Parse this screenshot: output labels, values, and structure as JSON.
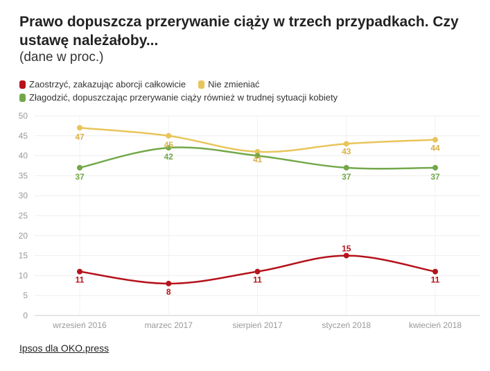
{
  "title": "Prawo dopuszcza przerywanie ciąży w trzech przypadkach. Czy ustawę należałoby...",
  "subtitle": "(dane w proc.)",
  "source": "Ipsos dla OKO.press",
  "chart_data": {
    "type": "line",
    "title": "Prawo dopuszcza przerywanie ciąży w trzech przypadkach. Czy ustawę należałoby...",
    "subtitle": "(dane w proc.)",
    "categories": [
      "wrzesień 2016",
      "marzec 2017",
      "sierpień 2017",
      "styczeń 2018",
      "kwiecień 2018"
    ],
    "ylim": [
      0,
      50
    ],
    "yticks": [
      0,
      5,
      10,
      15,
      20,
      25,
      30,
      35,
      40,
      45,
      50
    ],
    "grid": true,
    "legend_position": "top-left",
    "series": [
      {
        "name": "Zaostrzyć, zakazując aborcji całkowicie",
        "color": "#b5121b",
        "values": [
          11,
          8,
          11,
          15,
          11
        ]
      },
      {
        "name": "Nie zmieniać",
        "color": "#e8c55a",
        "values": [
          47,
          45,
          41,
          43,
          44
        ]
      },
      {
        "name": "Złagodzić, dopuszczając przerywanie ciąży również w trudnej sytuacji kobiety",
        "color": "#72a84a",
        "values": [
          37,
          42,
          40,
          37,
          37
        ]
      }
    ]
  }
}
